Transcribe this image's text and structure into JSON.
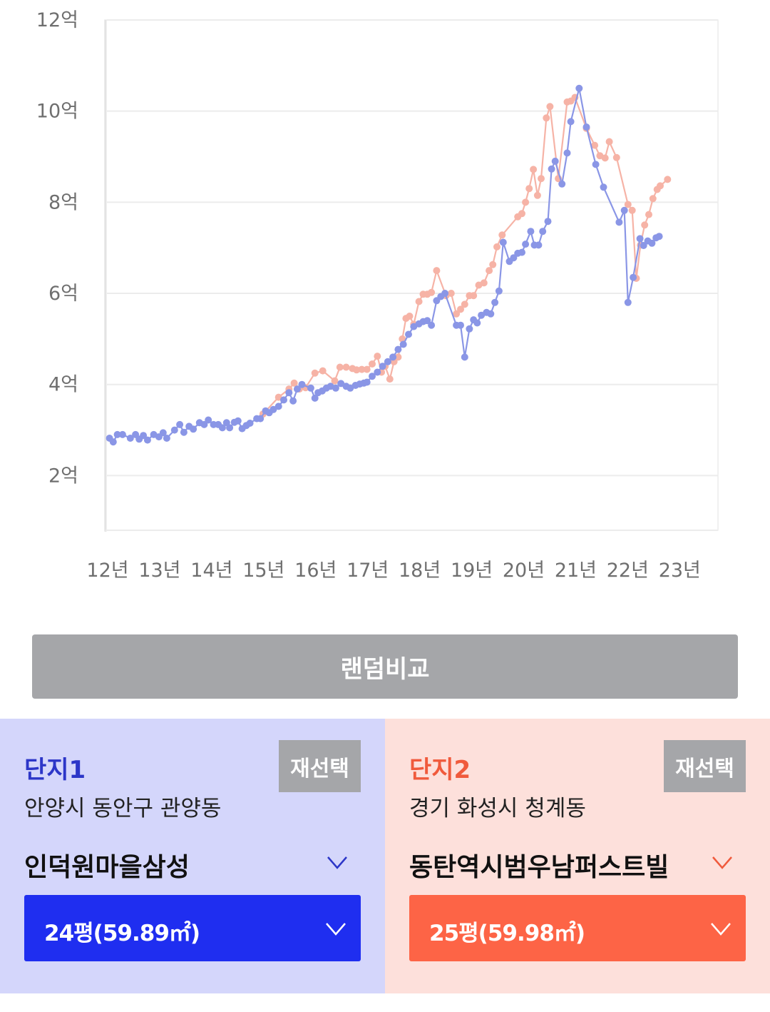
{
  "chart_data": {
    "type": "line",
    "y_unit": "억",
    "ylim": [
      0.8,
      12
    ],
    "y_ticks": [
      {
        "value": 2,
        "label": "2억"
      },
      {
        "value": 4,
        "label": "4억"
      },
      {
        "value": 6,
        "label": "6억"
      },
      {
        "value": 8,
        "label": "8억"
      },
      {
        "value": 10,
        "label": "10억"
      },
      {
        "value": 12,
        "label": "12억"
      }
    ],
    "xlim": [
      2012,
      2023.75
    ],
    "x_ticks": [
      {
        "value": 2012,
        "label": "12년"
      },
      {
        "value": 2013,
        "label": "13년"
      },
      {
        "value": 2014,
        "label": "14년"
      },
      {
        "value": 2015,
        "label": "15년"
      },
      {
        "value": 2016,
        "label": "16년"
      },
      {
        "value": 2017,
        "label": "17년"
      },
      {
        "value": 2018,
        "label": "18년"
      },
      {
        "value": 2019,
        "label": "19년"
      },
      {
        "value": 2020,
        "label": "20년"
      },
      {
        "value": 2021,
        "label": "21년"
      },
      {
        "value": 2022,
        "label": "22년"
      },
      {
        "value": 2023,
        "label": "23년"
      }
    ],
    "grid": true,
    "series": [
      {
        "color": "#8a96e6",
        "points": [
          [
            2012.05,
            2.82
          ],
          [
            2012.12,
            2.74
          ],
          [
            2012.2,
            2.9
          ],
          [
            2012.3,
            2.9
          ],
          [
            2012.45,
            2.82
          ],
          [
            2012.55,
            2.9
          ],
          [
            2012.62,
            2.8
          ],
          [
            2012.7,
            2.88
          ],
          [
            2012.78,
            2.78
          ],
          [
            2012.9,
            2.9
          ],
          [
            2013.0,
            2.85
          ],
          [
            2013.08,
            2.94
          ],
          [
            2013.15,
            2.82
          ],
          [
            2013.3,
            3.0
          ],
          [
            2013.4,
            3.12
          ],
          [
            2013.48,
            2.95
          ],
          [
            2013.58,
            3.08
          ],
          [
            2013.66,
            3.02
          ],
          [
            2013.78,
            3.16
          ],
          [
            2013.87,
            3.12
          ],
          [
            2013.95,
            3.22
          ],
          [
            2014.05,
            3.12
          ],
          [
            2014.14,
            3.12
          ],
          [
            2014.22,
            3.05
          ],
          [
            2014.3,
            3.16
          ],
          [
            2014.36,
            3.05
          ],
          [
            2014.45,
            3.17
          ],
          [
            2014.52,
            3.2
          ],
          [
            2014.6,
            3.03
          ],
          [
            2014.68,
            3.1
          ],
          [
            2014.75,
            3.15
          ],
          [
            2014.88,
            3.25
          ],
          [
            2014.95,
            3.25
          ],
          [
            2015.05,
            3.42
          ],
          [
            2015.12,
            3.38
          ],
          [
            2015.2,
            3.45
          ],
          [
            2015.3,
            3.52
          ],
          [
            2015.4,
            3.66
          ],
          [
            2015.5,
            3.82
          ],
          [
            2015.58,
            3.64
          ],
          [
            2015.66,
            3.9
          ],
          [
            2015.75,
            4.0
          ],
          [
            2015.92,
            3.92
          ],
          [
            2016.0,
            3.7
          ],
          [
            2016.06,
            3.82
          ],
          [
            2016.14,
            3.86
          ],
          [
            2016.22,
            3.92
          ],
          [
            2016.3,
            3.96
          ],
          [
            2016.4,
            3.92
          ],
          [
            2016.5,
            4.02
          ],
          [
            2016.6,
            3.96
          ],
          [
            2016.68,
            3.92
          ],
          [
            2016.78,
            3.98
          ],
          [
            2016.86,
            4.01
          ],
          [
            2016.94,
            4.03
          ],
          [
            2017.0,
            4.05
          ],
          [
            2017.1,
            4.18
          ],
          [
            2017.2,
            4.27
          ],
          [
            2017.3,
            4.4
          ],
          [
            2017.4,
            4.5
          ],
          [
            2017.5,
            4.6
          ],
          [
            2017.6,
            4.77
          ],
          [
            2017.7,
            4.88
          ],
          [
            2017.8,
            5.1
          ],
          [
            2017.9,
            5.27
          ],
          [
            2018.0,
            5.33
          ],
          [
            2018.08,
            5.38
          ],
          [
            2018.16,
            5.4
          ],
          [
            2018.24,
            5.3
          ],
          [
            2018.34,
            5.84
          ],
          [
            2018.42,
            5.93
          ],
          [
            2018.5,
            6.0
          ],
          [
            2018.72,
            5.3
          ],
          [
            2018.8,
            5.3
          ],
          [
            2018.88,
            4.6
          ],
          [
            2018.97,
            5.22
          ],
          [
            2019.05,
            5.42
          ],
          [
            2019.12,
            5.35
          ],
          [
            2019.2,
            5.52
          ],
          [
            2019.3,
            5.58
          ],
          [
            2019.38,
            5.55
          ],
          [
            2019.46,
            5.8
          ],
          [
            2019.54,
            6.05
          ],
          [
            2019.62,
            7.12
          ],
          [
            2019.74,
            6.7
          ],
          [
            2019.82,
            6.78
          ],
          [
            2019.9,
            6.88
          ],
          [
            2019.98,
            6.9
          ],
          [
            2020.05,
            7.08
          ],
          [
            2020.15,
            7.36
          ],
          [
            2020.22,
            7.06
          ],
          [
            2020.3,
            7.06
          ],
          [
            2020.38,
            7.36
          ],
          [
            2020.48,
            7.58
          ],
          [
            2020.55,
            8.73
          ],
          [
            2020.62,
            8.9
          ],
          [
            2020.75,
            8.4
          ],
          [
            2020.85,
            9.08
          ],
          [
            2020.92,
            9.77
          ],
          [
            2021.08,
            10.5
          ],
          [
            2021.22,
            9.65
          ],
          [
            2021.4,
            8.83
          ],
          [
            2021.55,
            8.33
          ],
          [
            2021.85,
            7.56
          ],
          [
            2021.95,
            7.82
          ],
          [
            2022.02,
            5.8
          ],
          [
            2022.12,
            6.35
          ],
          [
            2022.25,
            7.2
          ],
          [
            2022.32,
            7.05
          ],
          [
            2022.4,
            7.15
          ],
          [
            2022.48,
            7.1
          ],
          [
            2022.56,
            7.22
          ],
          [
            2022.62,
            7.25
          ]
        ]
      },
      {
        "color": "#f6b3a6",
        "points": [
          [
            2015.0,
            3.35
          ],
          [
            2015.3,
            3.72
          ],
          [
            2015.5,
            3.9
          ],
          [
            2015.6,
            4.03
          ],
          [
            2015.7,
            3.9
          ],
          [
            2015.82,
            3.93
          ],
          [
            2016.0,
            4.25
          ],
          [
            2016.15,
            4.3
          ],
          [
            2016.38,
            4.08
          ],
          [
            2016.48,
            4.38
          ],
          [
            2016.6,
            4.38
          ],
          [
            2016.72,
            4.35
          ],
          [
            2016.8,
            4.32
          ],
          [
            2016.9,
            4.33
          ],
          [
            2017.0,
            4.33
          ],
          [
            2017.1,
            4.45
          ],
          [
            2017.2,
            4.62
          ],
          [
            2017.28,
            4.27
          ],
          [
            2017.35,
            4.4
          ],
          [
            2017.44,
            4.12
          ],
          [
            2017.52,
            4.5
          ],
          [
            2017.6,
            4.6
          ],
          [
            2017.68,
            5.0
          ],
          [
            2017.75,
            5.45
          ],
          [
            2017.82,
            5.5
          ],
          [
            2017.9,
            5.32
          ],
          [
            2018.0,
            5.82
          ],
          [
            2018.08,
            5.98
          ],
          [
            2018.16,
            5.98
          ],
          [
            2018.24,
            6.02
          ],
          [
            2018.34,
            6.5
          ],
          [
            2018.52,
            5.95
          ],
          [
            2018.62,
            6.0
          ],
          [
            2018.72,
            5.55
          ],
          [
            2018.8,
            5.65
          ],
          [
            2018.88,
            5.76
          ],
          [
            2018.97,
            5.95
          ],
          [
            2019.05,
            5.95
          ],
          [
            2019.15,
            6.18
          ],
          [
            2019.25,
            6.23
          ],
          [
            2019.35,
            6.5
          ],
          [
            2019.42,
            6.63
          ],
          [
            2019.5,
            7.02
          ],
          [
            2019.6,
            7.28
          ],
          [
            2019.9,
            7.68
          ],
          [
            2019.98,
            7.75
          ],
          [
            2020.05,
            8.0
          ],
          [
            2020.12,
            8.3
          ],
          [
            2020.2,
            8.72
          ],
          [
            2020.28,
            8.15
          ],
          [
            2020.35,
            8.52
          ],
          [
            2020.45,
            9.85
          ],
          [
            2020.52,
            10.1
          ],
          [
            2020.68,
            8.52
          ],
          [
            2020.85,
            10.2
          ],
          [
            2020.92,
            10.22
          ],
          [
            2021.0,
            10.3
          ],
          [
            2021.22,
            9.62
          ],
          [
            2021.38,
            9.25
          ],
          [
            2021.48,
            9.02
          ],
          [
            2021.58,
            8.97
          ],
          [
            2021.66,
            9.33
          ],
          [
            2021.8,
            8.98
          ],
          [
            2022.02,
            7.95
          ],
          [
            2022.1,
            7.82
          ],
          [
            2022.18,
            6.33
          ],
          [
            2022.26,
            7.06
          ],
          [
            2022.34,
            7.5
          ],
          [
            2022.42,
            7.73
          ],
          [
            2022.5,
            8.08
          ],
          [
            2022.58,
            8.28
          ],
          [
            2022.64,
            8.36
          ],
          [
            2022.78,
            8.5
          ]
        ]
      }
    ]
  },
  "random_compare_label": "랜덤비교",
  "panel1": {
    "title": "단지1",
    "reselect_label": "재선택",
    "region": "안양시 동안구 관양동",
    "complex_name": "인덕원마을삼성",
    "size_label": "24평(59.89㎡)",
    "accent_color": "#1f2ef0"
  },
  "panel2": {
    "title": "단지2",
    "reselect_label": "재선택",
    "region": "경기 화성시 청계동",
    "complex_name": "동탄역시범우남퍼스트빌",
    "size_label": "25평(59.98㎡)",
    "accent_color": "#fd6446"
  }
}
